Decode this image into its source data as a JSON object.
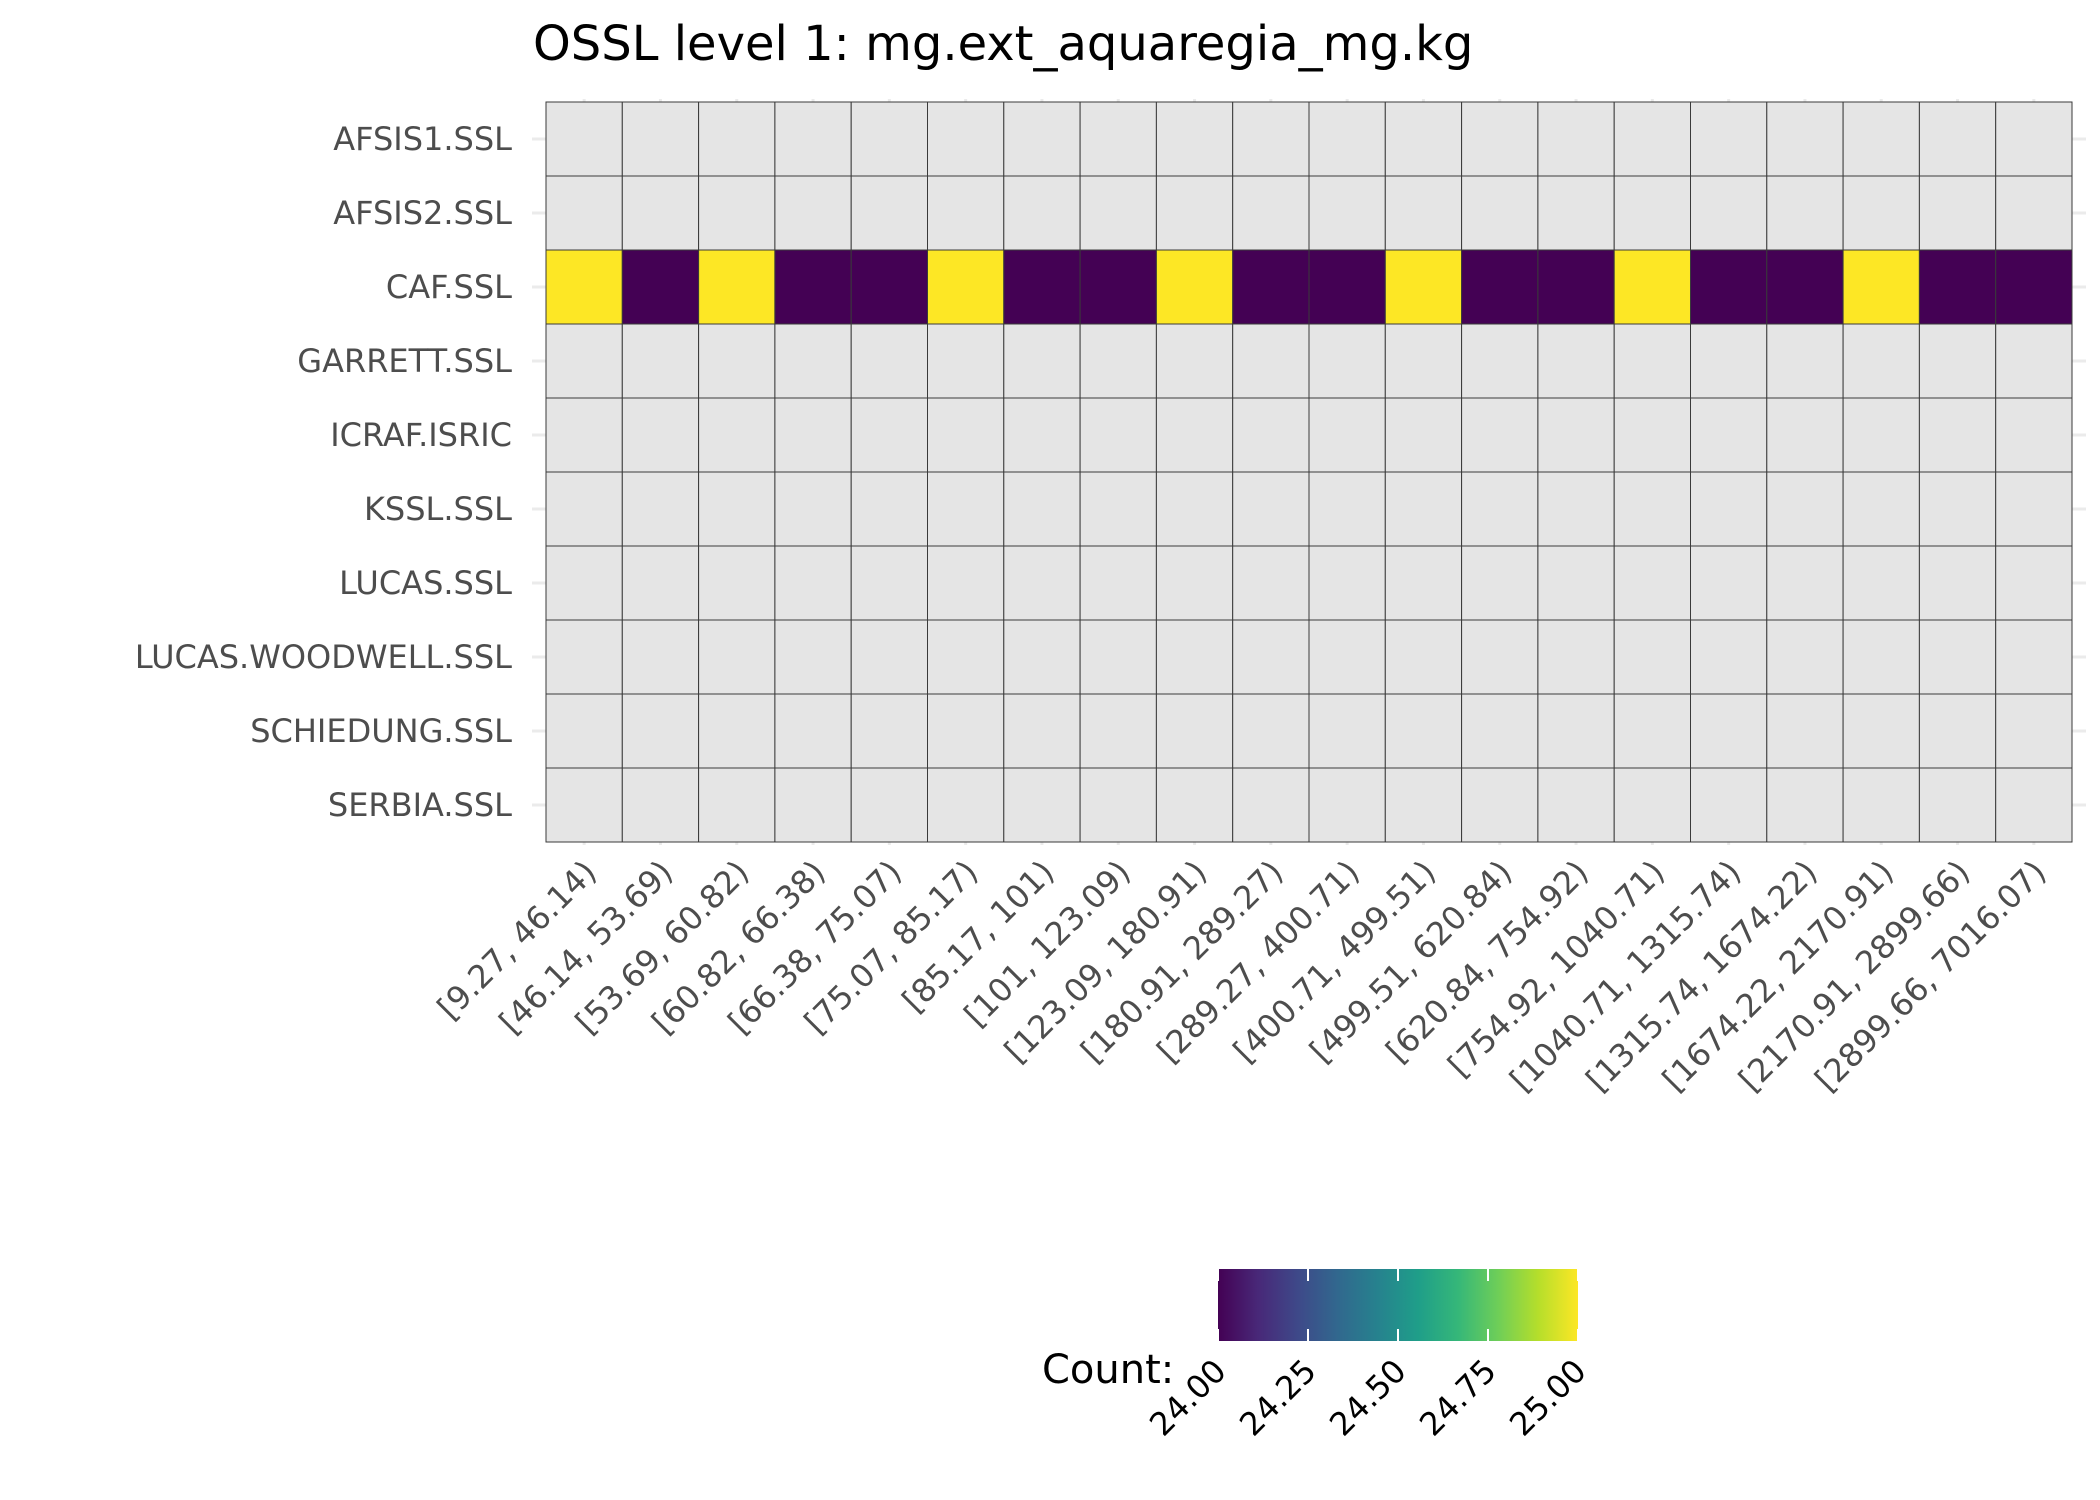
{
  "chart_data": {
    "type": "heatmap",
    "title": "OSSL level 1: mg.ext_aquaregia_mg.kg",
    "xlabel": "",
    "ylabel": "",
    "x_categories": [
      "[9.27, 46.14)",
      "[46.14, 53.69)",
      "[53.69, 60.82)",
      "[60.82, 66.38)",
      "[66.38, 75.07)",
      "[75.07, 85.17)",
      "[85.17, 101)",
      "[101, 123.09)",
      "[123.09, 180.91)",
      "[180.91, 289.27)",
      "[289.27, 400.71)",
      "[400.71, 499.51)",
      "[499.51, 620.84)",
      "[620.84, 754.92)",
      "[754.92, 1040.71)",
      "[1040.71, 1315.74)",
      "[1315.74, 1674.22)",
      "[1674.22, 2170.91)",
      "[2170.91, 2899.66)",
      "[2899.66, 7016.07)"
    ],
    "y_categories": [
      "AFSIS1.SSL",
      "AFSIS2.SSL",
      "CAF.SSL",
      "GARRETT.SSL",
      "ICRAF.ISRIC",
      "KSSL.SSL",
      "LUCAS.SSL",
      "LUCAS.WOODWELL.SSL",
      "SCHIEDUNG.SSL",
      "SERBIA.SSL"
    ],
    "values": [
      [
        null,
        null,
        null,
        null,
        null,
        null,
        null,
        null,
        null,
        null,
        null,
        null,
        null,
        null,
        null,
        null,
        null,
        null,
        null,
        null
      ],
      [
        null,
        null,
        null,
        null,
        null,
        null,
        null,
        null,
        null,
        null,
        null,
        null,
        null,
        null,
        null,
        null,
        null,
        null,
        null,
        null
      ],
      [
        25,
        24,
        25,
        24,
        24,
        25,
        24,
        24,
        25,
        24,
        24,
        25,
        24,
        24,
        25,
        24,
        24,
        25,
        24,
        24
      ],
      [
        null,
        null,
        null,
        null,
        null,
        null,
        null,
        null,
        null,
        null,
        null,
        null,
        null,
        null,
        null,
        null,
        null,
        null,
        null,
        null
      ],
      [
        null,
        null,
        null,
        null,
        null,
        null,
        null,
        null,
        null,
        null,
        null,
        null,
        null,
        null,
        null,
        null,
        null,
        null,
        null,
        null
      ],
      [
        null,
        null,
        null,
        null,
        null,
        null,
        null,
        null,
        null,
        null,
        null,
        null,
        null,
        null,
        null,
        null,
        null,
        null,
        null,
        null
      ],
      [
        null,
        null,
        null,
        null,
        null,
        null,
        null,
        null,
        null,
        null,
        null,
        null,
        null,
        null,
        null,
        null,
        null,
        null,
        null,
        null
      ],
      [
        null,
        null,
        null,
        null,
        null,
        null,
        null,
        null,
        null,
        null,
        null,
        null,
        null,
        null,
        null,
        null,
        null,
        null,
        null,
        null
      ],
      [
        null,
        null,
        null,
        null,
        null,
        null,
        null,
        null,
        null,
        null,
        null,
        null,
        null,
        null,
        null,
        null,
        null,
        null,
        null,
        null
      ],
      [
        null,
        null,
        null,
        null,
        null,
        null,
        null,
        null,
        null,
        null,
        null,
        null,
        null,
        null,
        null,
        null,
        null,
        null,
        null,
        null
      ]
    ],
    "legend": {
      "title": "Count:",
      "position": "bottom",
      "range": [
        24,
        25
      ],
      "ticks": [
        24.0,
        24.25,
        24.5,
        24.75,
        25.0
      ],
      "tick_labels": [
        "24.00",
        "24.25",
        "24.50",
        "24.75",
        "25.00"
      ],
      "colormap": "viridis"
    },
    "colors": {
      "na_fill": "#e5e5e5",
      "cell_border": "#3a3a3a",
      "grid": "#ebebeb",
      "axis_text": "#4d4d4d",
      "title_text": "#000000"
    },
    "grid": true
  }
}
